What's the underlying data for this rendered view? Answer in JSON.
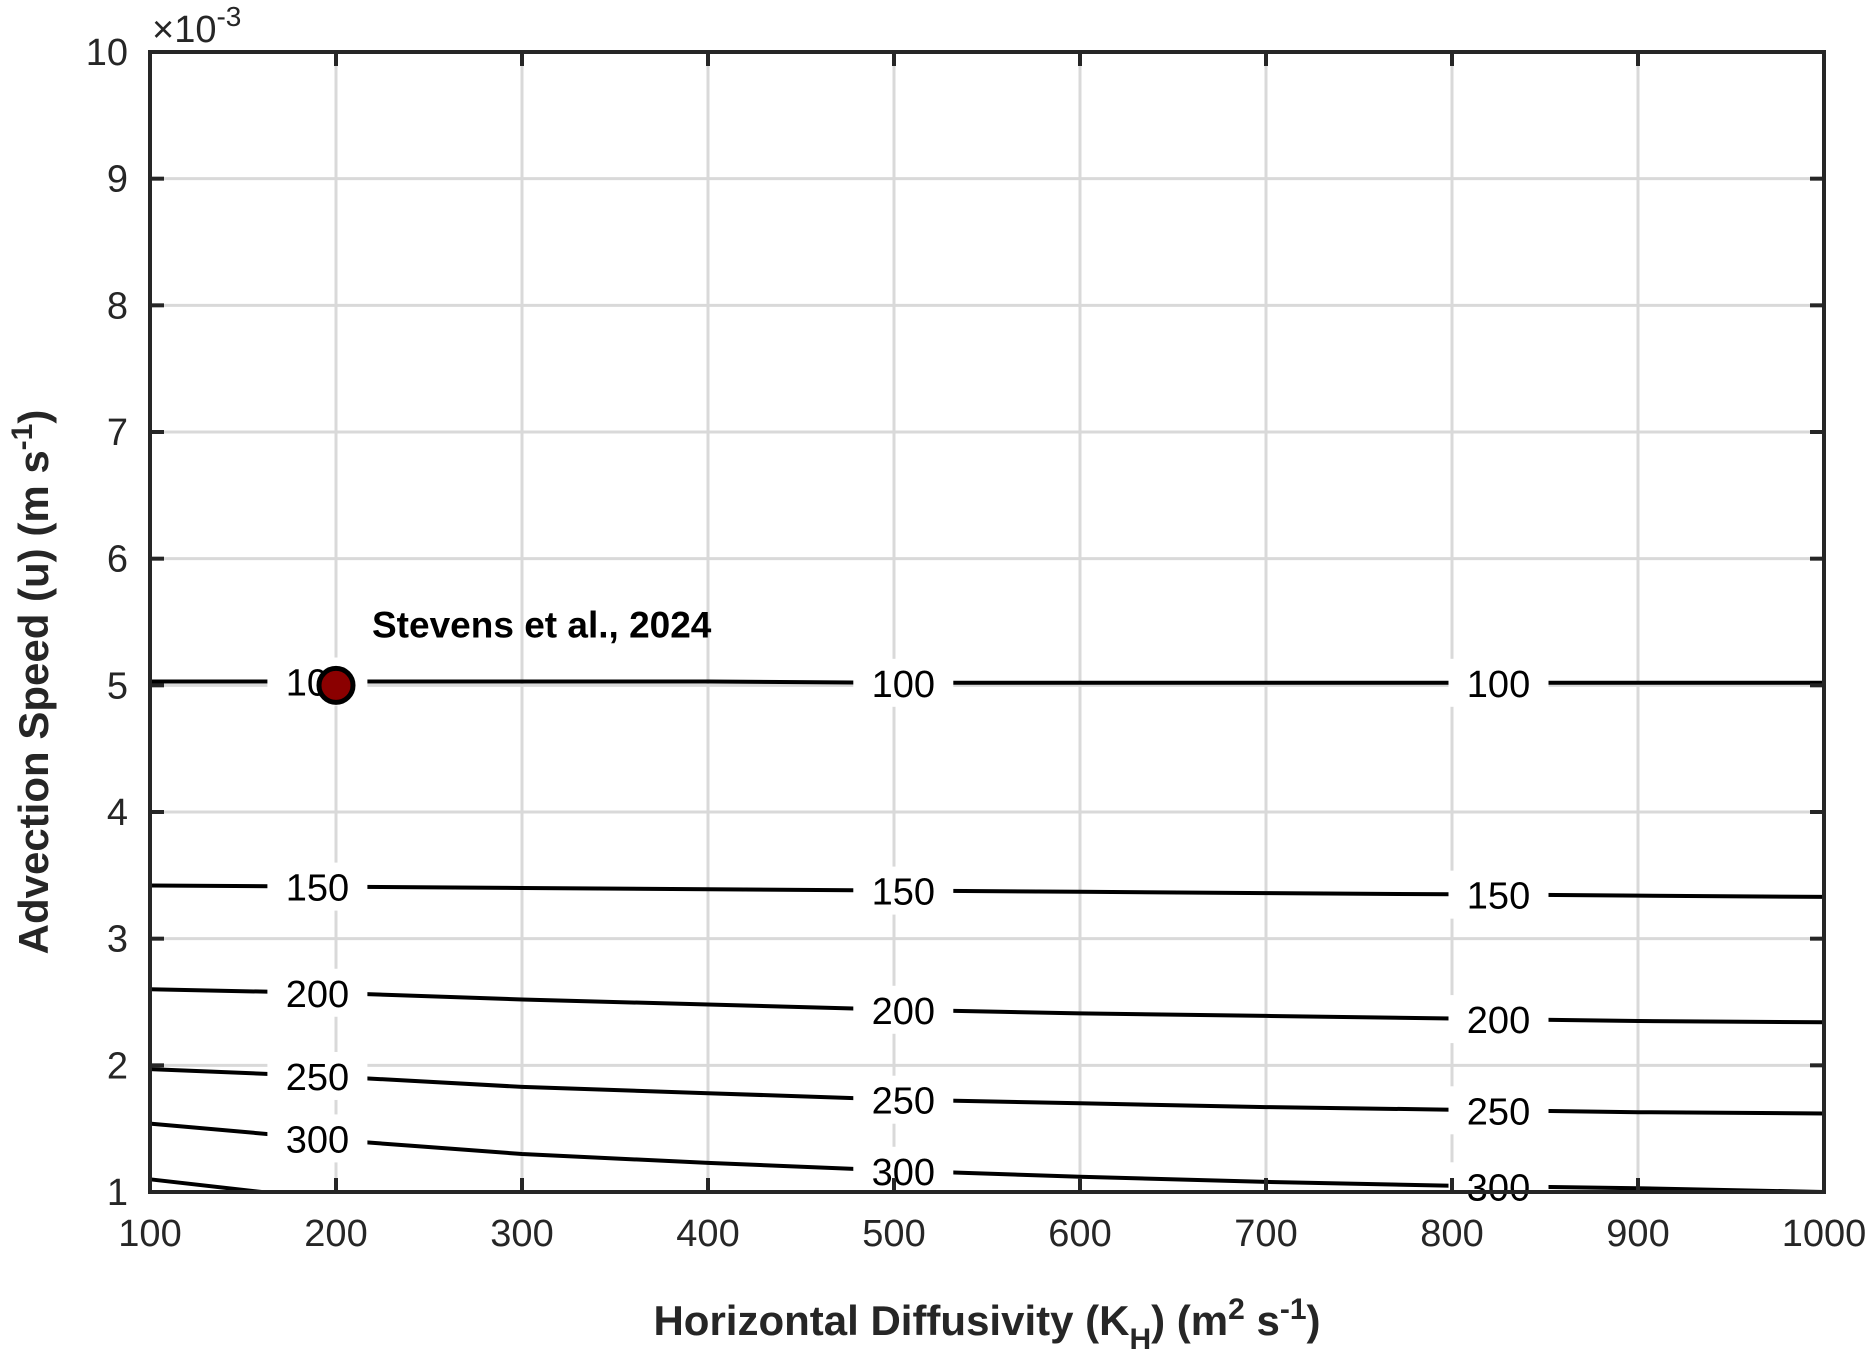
{
  "chart_data": {
    "type": "line",
    "xlabel": "Horizontal Diffusivity (K_H) (m^2 s^-1)",
    "ylabel": "Advection Speed (u) (m s^-1)",
    "xlim": [
      100,
      1000
    ],
    "ylim": [
      0.001,
      0.01
    ],
    "x_ticks": [
      "100",
      "200",
      "300",
      "400",
      "500",
      "600",
      "700",
      "800",
      "900",
      "1000"
    ],
    "y_ticks": [
      "1",
      "2",
      "3",
      "4",
      "5",
      "6",
      "7",
      "8",
      "9",
      "10"
    ],
    "y_exponent": "-3",
    "grid": true,
    "series": [
      {
        "contour_level": "100",
        "x": [
          100,
          200,
          300,
          400,
          500,
          600,
          700,
          800,
          900,
          1000
        ],
        "y": [
          0.00503,
          0.00503,
          0.00503,
          0.00503,
          0.00502,
          0.00502,
          0.00502,
          0.00502,
          0.00502,
          0.00502
        ],
        "labels": [
          {
            "text": "100",
            "x": 190
          },
          {
            "text": "100",
            "x": 505
          },
          {
            "text": "100",
            "x": 825
          }
        ]
      },
      {
        "contour_level": "150",
        "x": [
          100,
          200,
          300,
          400,
          500,
          600,
          700,
          800,
          900,
          1000
        ],
        "y": [
          0.00342,
          0.00341,
          0.0034,
          0.00339,
          0.00338,
          0.00337,
          0.00336,
          0.00335,
          0.00334,
          0.00333
        ],
        "labels": [
          {
            "text": "150",
            "x": 190
          },
          {
            "text": "150",
            "x": 505
          },
          {
            "text": "150",
            "x": 825
          }
        ]
      },
      {
        "contour_level": "200",
        "x": [
          100,
          200,
          300,
          400,
          500,
          600,
          700,
          800,
          900,
          1000
        ],
        "y": [
          0.0026,
          0.00257,
          0.00252,
          0.00248,
          0.00244,
          0.00241,
          0.00239,
          0.00237,
          0.00235,
          0.00234
        ],
        "labels": [
          {
            "text": "200",
            "x": 190
          },
          {
            "text": "200",
            "x": 505
          },
          {
            "text": "200",
            "x": 825
          }
        ]
      },
      {
        "contour_level": "250",
        "x": [
          100,
          200,
          300,
          400,
          500,
          600,
          700,
          800,
          900,
          1000
        ],
        "y": [
          0.00197,
          0.00191,
          0.00183,
          0.00178,
          0.00173,
          0.0017,
          0.00167,
          0.00165,
          0.00163,
          0.00162
        ],
        "labels": [
          {
            "text": "250",
            "x": 190
          },
          {
            "text": "250",
            "x": 505
          },
          {
            "text": "250",
            "x": 825
          }
        ]
      },
      {
        "contour_level": "300",
        "x": [
          100,
          200,
          300,
          400,
          500,
          600,
          700,
          800,
          900,
          1000
        ],
        "y": [
          0.00154,
          0.00141,
          0.0013,
          0.00123,
          0.00117,
          0.00112,
          0.00108,
          0.00105,
          0.00103,
          0.001
        ],
        "labels": [
          {
            "text": "300",
            "x": 190
          },
          {
            "text": "300",
            "x": 505
          },
          {
            "text": "300",
            "x": 825
          }
        ]
      },
      {
        "contour_level": "",
        "x": [
          100,
          160
        ],
        "y": [
          0.0011,
          0.001
        ],
        "labels": []
      }
    ],
    "marker": {
      "x": 200,
      "y": 0.005,
      "label": "Stevens et al., 2024",
      "color": "#8b0000"
    }
  }
}
